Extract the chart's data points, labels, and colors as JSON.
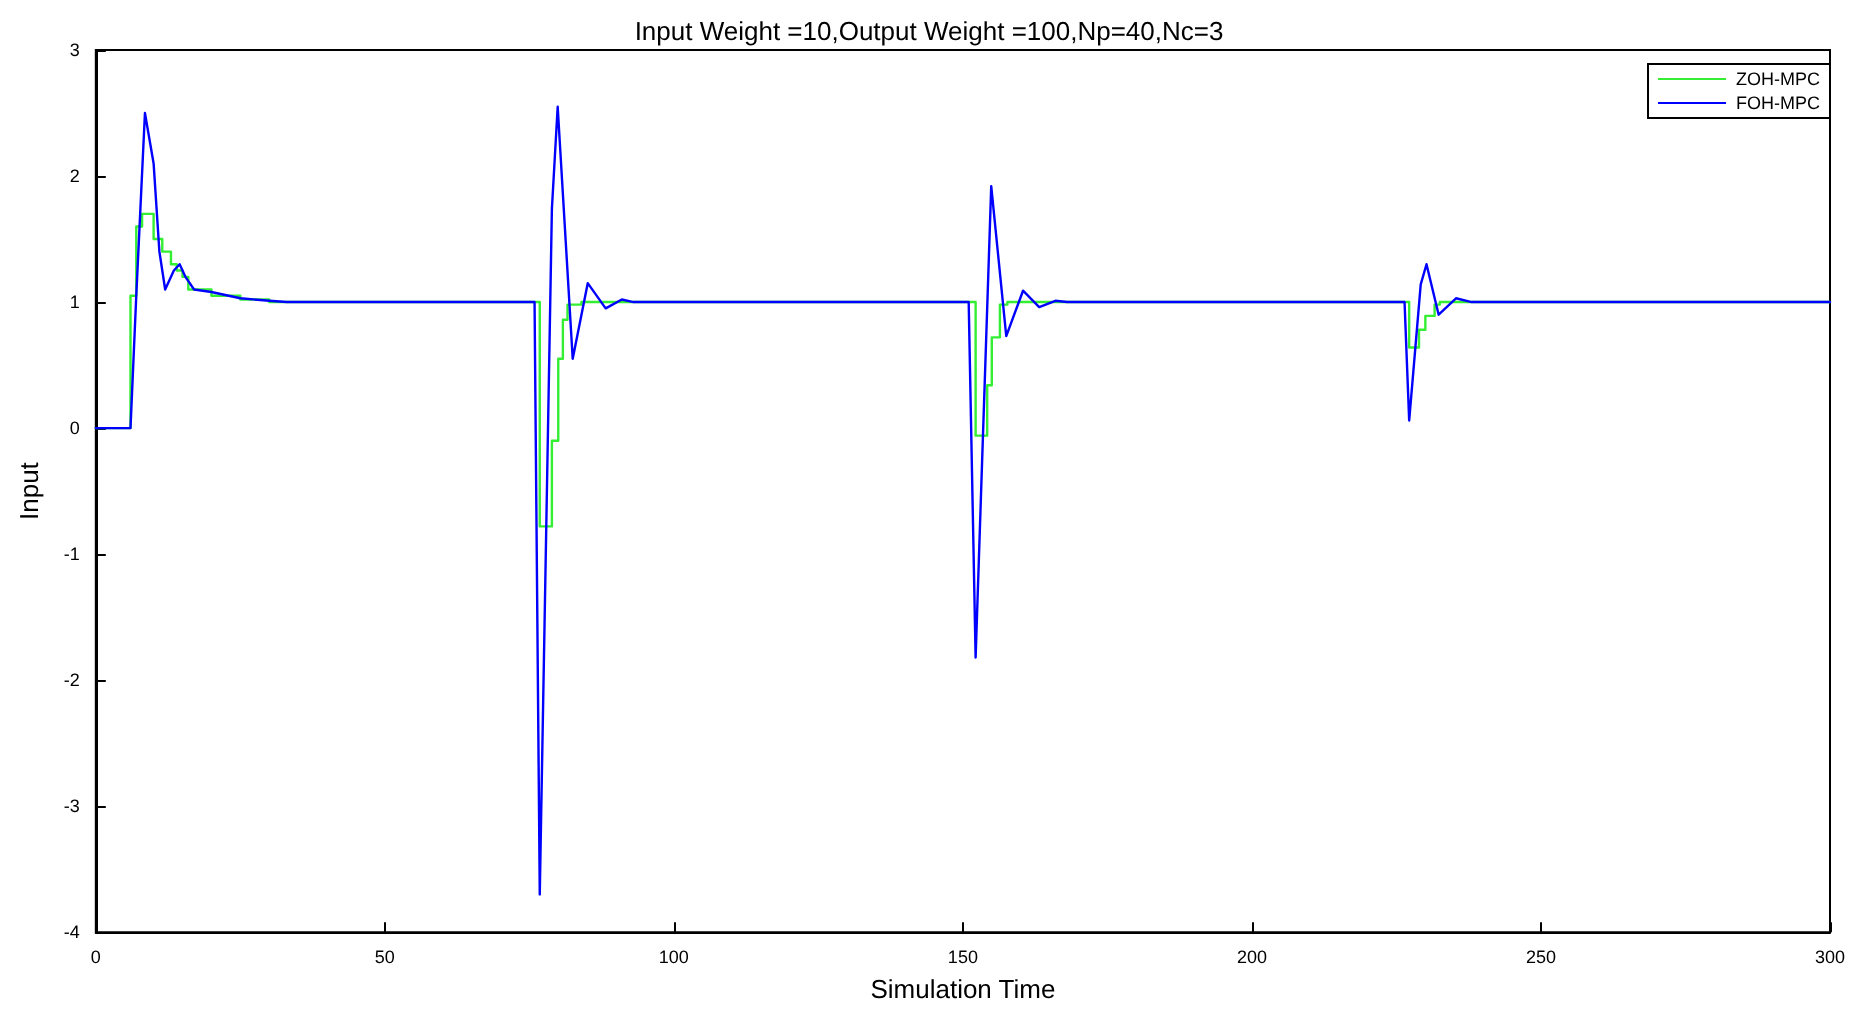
{
  "chart_data": {
    "type": "line",
    "title": "Input Weight =10,Output Weight =100,Np=40,Nc=3",
    "xlabel": "Simulation Time",
    "ylabel": "Input",
    "xlim": [
      0,
      300
    ],
    "xticks": [
      0,
      50,
      100,
      150,
      200,
      250,
      300
    ],
    "ylim": [
      -4,
      3
    ],
    "yticks": [
      -4,
      -3,
      -2,
      -1,
      0,
      1,
      2,
      3
    ],
    "grid": false,
    "legend": "top right",
    "marker": "none",
    "line_style": "solid",
    "series": [
      {
        "name": "ZOH-MPC",
        "type": "step",
        "color": "#33ee33",
        "x": [
          0,
          6,
          7,
          8,
          10,
          11.5,
          13,
          14,
          15,
          16,
          20,
          25,
          30,
          76.8,
          78.9,
          80,
          80.8,
          81.6,
          84,
          152.2,
          154.2,
          155,
          156.4,
          157.7,
          227.2,
          228.9,
          230,
          231.6,
          232.5,
          300
        ],
        "values": [
          0,
          1.05,
          1.6,
          1.7,
          1.5,
          1.4,
          1.3,
          1.25,
          1.2,
          1.1,
          1.05,
          1.02,
          1.0,
          -0.78,
          -0.1,
          0.55,
          0.86,
          0.98,
          1.0,
          -0.06,
          0.34,
          0.72,
          0.98,
          1.0,
          0.64,
          0.78,
          0.89,
          0.98,
          1.0,
          1.0
        ]
      },
      {
        "name": "FOH-MPC",
        "type": "line",
        "color": "#0000ff",
        "x": [
          0,
          6,
          7,
          8.5,
          10,
          11,
          12,
          13.5,
          14.5,
          15.5,
          17,
          20,
          25,
          30,
          33,
          75.9,
          76.8,
          78.9,
          79.9,
          82.5,
          85.1,
          88.2,
          91,
          93,
          151,
          152.2,
          154.9,
          157.5,
          160.4,
          163.2,
          166,
          168,
          226.4,
          227.2,
          229.2,
          230.2,
          232.3,
          235.3,
          238,
          300
        ],
        "values": [
          0,
          0,
          1.05,
          2.5,
          2.1,
          1.4,
          1.1,
          1.25,
          1.3,
          1.2,
          1.1,
          1.08,
          1.03,
          1.01,
          1,
          1,
          -3.7,
          1.74,
          2.55,
          0.55,
          1.15,
          0.95,
          1.02,
          1,
          1,
          -1.82,
          1.92,
          0.73,
          1.09,
          0.96,
          1.01,
          1,
          1,
          0.06,
          1.14,
          1.3,
          0.9,
          1.03,
          1,
          1
        ]
      }
    ]
  }
}
